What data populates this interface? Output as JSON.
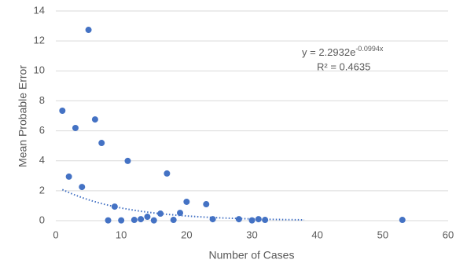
{
  "chart_data": {
    "type": "scatter",
    "x_label": "Number of Cases",
    "y_label": "Mean Probable Error",
    "series": [
      {
        "color": "#4472c4",
        "x": [
          1,
          2,
          3,
          4,
          5,
          6,
          7,
          8,
          9,
          10,
          11,
          12,
          13,
          14,
          15,
          16,
          17,
          18,
          19,
          20,
          23,
          24,
          28,
          30,
          31,
          32,
          53
        ],
        "values": [
          7.34,
          2.94,
          6.19,
          2.25,
          12.74,
          6.76,
          5.19,
          0.02,
          0.94,
          0.02,
          3.99,
          0.05,
          0.1,
          0.26,
          0.02,
          0.47,
          3.15,
          0.05,
          0.52,
          1.26,
          1.1,
          0.1,
          0.1,
          0.02,
          0.1,
          0.05,
          0.05
        ]
      }
    ],
    "trendline": {
      "a": 2.2932,
      "b": -0.0994,
      "x_start": 1,
      "x_end": 38,
      "color": "#4472c4",
      "equation": "y = 2.2932e",
      "exponent": "-0.0994x",
      "r_squared": "R² = 0.4635"
    },
    "xlim": [
      0,
      60
    ],
    "xticks": [
      0,
      10,
      20,
      30,
      40,
      50,
      60
    ],
    "ylim": [
      0,
      14
    ],
    "yticks": [
      0,
      2,
      4,
      6,
      8,
      10,
      12,
      14
    ],
    "grid": true
  }
}
